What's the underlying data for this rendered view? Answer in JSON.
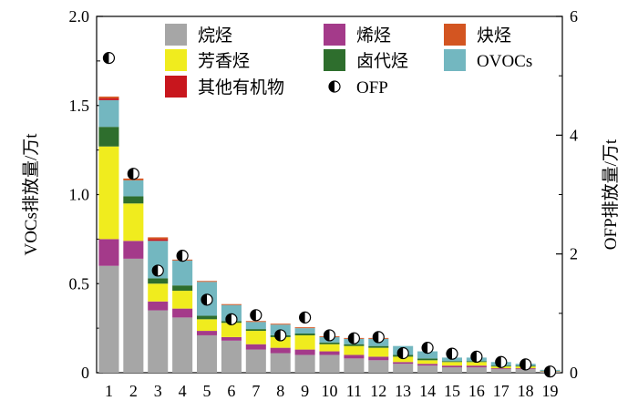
{
  "chart_data": {
    "type": "bar",
    "stacked": true,
    "categories": [
      "1",
      "2",
      "3",
      "4",
      "5",
      "6",
      "7",
      "8",
      "9",
      "10",
      "11",
      "12",
      "13",
      "14",
      "15",
      "16",
      "17",
      "18",
      "19"
    ],
    "y_left": {
      "label": "VOCs排放量/万t",
      "lim": [
        0,
        2.0
      ],
      "ticks": [
        "0",
        "0.5",
        "1.0",
        "1.5",
        "2.0"
      ]
    },
    "y_right": {
      "label": "OFP排放量/万t",
      "lim": [
        0,
        6
      ],
      "ticks": [
        "0",
        "2",
        "4",
        "6"
      ]
    },
    "legend_position": "top",
    "grid": false,
    "series": [
      {
        "name": "烷烃",
        "color": "#a6a6a6",
        "values": [
          0.6,
          0.64,
          0.35,
          0.31,
          0.21,
          0.18,
          0.13,
          0.11,
          0.1,
          0.1,
          0.08,
          0.07,
          0.05,
          0.04,
          0.03,
          0.03,
          0.02,
          0.02,
          0.005
        ]
      },
      {
        "name": "烯烃",
        "color": "#a43a8a",
        "values": [
          0.15,
          0.1,
          0.05,
          0.05,
          0.025,
          0.02,
          0.03,
          0.03,
          0.03,
          0.02,
          0.02,
          0.02,
          0.01,
          0.01,
          0.01,
          0.01,
          0.005,
          0.005,
          0.002
        ]
      },
      {
        "name": "芳香烃",
        "color": "#f0ec1e",
        "values": [
          0.52,
          0.21,
          0.1,
          0.1,
          0.065,
          0.08,
          0.075,
          0.06,
          0.08,
          0.04,
          0.05,
          0.05,
          0.03,
          0.02,
          0.02,
          0.02,
          0.01,
          0.01,
          0.002
        ]
      },
      {
        "name": "卤代烃",
        "color": "#2e6e2d",
        "values": [
          0.11,
          0.04,
          0.03,
          0.03,
          0.02,
          0.01,
          0.01,
          0.01,
          0.01,
          0.01,
          0.01,
          0.01,
          0.01,
          0.01,
          0.005,
          0.005,
          0.005,
          0.005,
          0.002
        ]
      },
      {
        "name": "OVOCs",
        "color": "#73b7c0",
        "values": [
          0.15,
          0.09,
          0.21,
          0.14,
          0.19,
          0.09,
          0.04,
          0.06,
          0.03,
          0.03,
          0.03,
          0.04,
          0.05,
          0.04,
          0.02,
          0.02,
          0.02,
          0.01,
          0.005
        ]
      },
      {
        "name": "其他有机物",
        "color": "#c8161d",
        "values": [
          0.01,
          0.0,
          0.01,
          0.0,
          0.0,
          0.0,
          0.0,
          0.0,
          0.0,
          0.0,
          0.0,
          0.0,
          0.0,
          0.0,
          0.0,
          0.0,
          0.0,
          0.0,
          0.0
        ]
      },
      {
        "name": "炔烃",
        "color": "#d35521",
        "values": [
          0.01,
          0.01,
          0.01,
          0.005,
          0.005,
          0.005,
          0.005,
          0.005,
          0.005,
          0.005,
          0.005,
          0.005,
          0.0,
          0.0,
          0.0,
          0.0,
          0.0,
          0.0,
          0.0
        ]
      }
    ],
    "ofp": {
      "name": "OFP",
      "axis": "right",
      "values": [
        5.3,
        3.35,
        1.72,
        1.97,
        1.23,
        0.9,
        0.97,
        0.63,
        0.93,
        0.63,
        0.58,
        0.6,
        0.33,
        0.42,
        0.32,
        0.27,
        0.18,
        0.14,
        0.02
      ]
    },
    "legend_order": [
      "烷烃",
      "烯烃",
      "炔烃",
      "芳香烃",
      "卤代烃",
      "OVOCs",
      "其他有机物",
      "OFP"
    ]
  }
}
